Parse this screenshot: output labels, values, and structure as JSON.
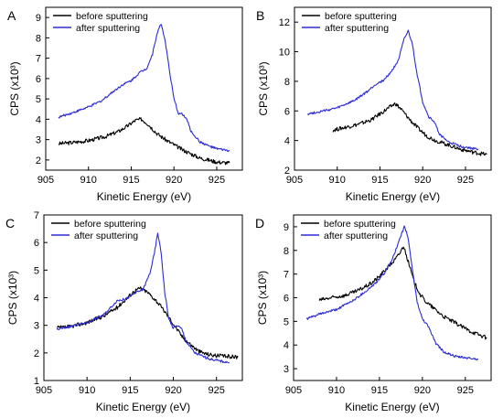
{
  "chart_data": [
    {
      "panel": "A",
      "type": "line",
      "xlabel": "Kinetic Energy (eV)",
      "ylabel": "CPS (x10³)",
      "xlim": [
        905,
        928
      ],
      "ylim": [
        1.5,
        9.5
      ],
      "xticks": [
        905,
        910,
        915,
        920,
        925
      ],
      "yticks": [
        2,
        3,
        4,
        5,
        6,
        7,
        8,
        9
      ],
      "legend_position": "top-left",
      "series": [
        {
          "name": "before sputtering",
          "color": "#000000",
          "x": [
            906.5,
            908,
            910,
            912,
            913.5,
            914.5,
            915.5,
            916.2,
            917,
            918,
            919,
            920,
            921,
            922,
            923,
            924,
            925,
            926.5
          ],
          "y": [
            2.8,
            2.85,
            2.95,
            3.15,
            3.4,
            3.65,
            3.95,
            4.0,
            3.75,
            3.3,
            3.0,
            2.75,
            2.5,
            2.3,
            2.1,
            2.0,
            1.9,
            1.85
          ]
        },
        {
          "name": "after sputtering",
          "color": "#2b2bd6",
          "x": [
            906.5,
            908,
            910,
            911.5,
            913,
            914,
            915,
            916,
            916.8,
            917.5,
            918,
            918.5,
            919,
            919.5,
            920,
            920.5,
            921,
            921.5,
            922,
            923,
            924,
            925,
            926.5
          ],
          "y": [
            4.1,
            4.3,
            4.6,
            4.9,
            5.4,
            5.7,
            5.9,
            6.3,
            6.5,
            7.2,
            8.2,
            8.7,
            7.8,
            6.3,
            5.0,
            4.3,
            4.25,
            4.0,
            3.4,
            2.9,
            2.7,
            2.55,
            2.45
          ]
        }
      ]
    },
    {
      "panel": "B",
      "type": "line",
      "xlabel": "Kinetic Energy (eV)",
      "ylabel": "CPS (x10³)",
      "xlim": [
        905,
        928
      ],
      "ylim": [
        2,
        13
      ],
      "xticks": [
        905,
        910,
        915,
        920,
        925
      ],
      "yticks": [
        2,
        4,
        6,
        8,
        10,
        12
      ],
      "legend_position": "top-left",
      "series": [
        {
          "name": "before sputtering",
          "color": "#000000",
          "x": [
            909.5,
            911,
            912.5,
            914,
            915,
            916,
            916.8,
            917.5,
            918.5,
            919.5,
            920.5,
            921.5,
            923,
            924.5,
            926,
            927.5
          ],
          "y": [
            4.7,
            4.9,
            5.1,
            5.4,
            5.8,
            6.2,
            6.5,
            6.1,
            5.4,
            4.8,
            4.3,
            4.0,
            3.7,
            3.4,
            3.2,
            3.05
          ]
        },
        {
          "name": "after sputtering",
          "color": "#2b2bd6",
          "x": [
            906.5,
            908,
            910,
            912,
            913.5,
            914.5,
            915.5,
            916.5,
            917.2,
            917.8,
            918.3,
            918.8,
            919.3,
            920,
            920.7,
            921.3,
            922,
            923,
            924.5,
            926.5
          ],
          "y": [
            5.8,
            5.95,
            6.2,
            6.7,
            7.3,
            7.8,
            8.1,
            8.8,
            9.5,
            10.8,
            11.4,
            10.5,
            8.6,
            6.6,
            5.6,
            5.3,
            4.4,
            3.9,
            3.6,
            3.4
          ]
        }
      ]
    },
    {
      "panel": "C",
      "type": "line",
      "xlabel": "Kinetic Energy (eV)",
      "ylabel": "CPS (x10³)",
      "xlim": [
        905,
        928
      ],
      "ylim": [
        1,
        7
      ],
      "xticks": [
        905,
        910,
        915,
        920,
        925
      ],
      "yticks": [
        1,
        2,
        3,
        4,
        5,
        6,
        7
      ],
      "legend_position": "top-left",
      "series": [
        {
          "name": "before sputtering",
          "color": "#000000",
          "x": [
            906.5,
            908,
            910,
            912,
            913.5,
            914.5,
            915.5,
            916.2,
            917,
            918,
            919,
            920,
            921,
            922,
            923,
            924,
            925,
            927.5
          ],
          "y": [
            2.9,
            2.95,
            3.1,
            3.35,
            3.65,
            3.95,
            4.25,
            4.35,
            4.2,
            3.9,
            3.5,
            3.05,
            2.6,
            2.3,
            2.05,
            1.95,
            1.9,
            1.85
          ]
        },
        {
          "name": "after sputtering",
          "color": "#2b2bd6",
          "x": [
            906.5,
            908,
            910,
            912,
            913.5,
            914.5,
            915.5,
            916.5,
            917.3,
            917.8,
            918.2,
            918.6,
            919,
            919.5,
            920,
            920.5,
            921,
            921.5,
            922.5,
            924,
            925.5,
            926.5
          ],
          "y": [
            2.85,
            2.95,
            3.1,
            3.4,
            3.9,
            3.95,
            4.15,
            4.3,
            4.9,
            5.6,
            6.35,
            5.6,
            4.2,
            3.2,
            2.9,
            3.0,
            2.85,
            2.4,
            2.0,
            1.8,
            1.7,
            1.65
          ]
        }
      ]
    },
    {
      "panel": "D",
      "type": "line",
      "xlabel": "Kinetic Energy (eV)",
      "ylabel": "CPS (x10³)",
      "xlim": [
        905,
        928
      ],
      "ylim": [
        2.5,
        9.5
      ],
      "xticks": [
        905,
        910,
        915,
        920,
        925
      ],
      "yticks": [
        3,
        4,
        5,
        6,
        7,
        8,
        9
      ],
      "legend_position": "top-left",
      "series": [
        {
          "name": "before sputtering",
          "color": "#000000",
          "x": [
            908,
            909.5,
            911,
            912.5,
            914,
            915,
            916,
            916.8,
            917.4,
            917.8,
            918.3,
            919,
            919.8,
            920.5,
            921.5,
            922.5,
            924,
            925.5,
            927.5
          ],
          "y": [
            5.9,
            6.0,
            6.1,
            6.3,
            6.6,
            6.9,
            7.3,
            7.6,
            7.9,
            8.2,
            7.6,
            6.7,
            6.1,
            5.8,
            5.5,
            5.2,
            4.9,
            4.6,
            4.3
          ]
        },
        {
          "name": "after sputtering",
          "color": "#2b2bd6",
          "x": [
            906.5,
            908,
            910,
            912,
            913.5,
            914.5,
            915.5,
            916.3,
            917,
            917.5,
            917.9,
            918.3,
            918.8,
            919.4,
            920,
            920.7,
            921.5,
            922.5,
            924,
            926.5
          ],
          "y": [
            5.1,
            5.3,
            5.5,
            5.9,
            6.3,
            6.6,
            7.0,
            7.5,
            8.1,
            8.6,
            9.0,
            8.6,
            7.3,
            5.8,
            5.1,
            4.8,
            4.1,
            3.7,
            3.5,
            3.4
          ]
        }
      ]
    }
  ]
}
